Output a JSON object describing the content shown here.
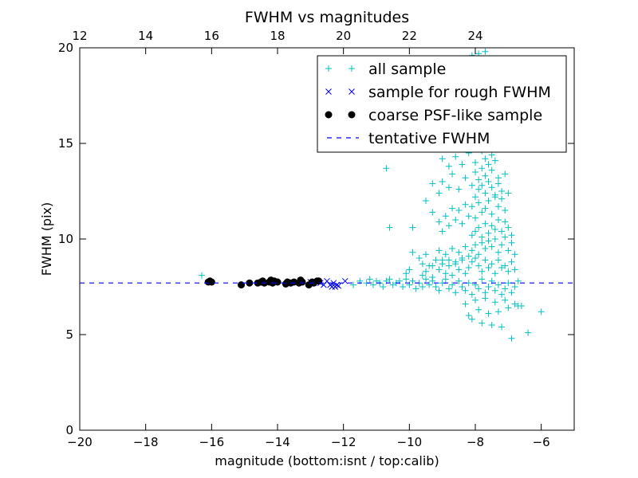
{
  "chart_data": {
    "type": "scatter",
    "title": "FWHM vs magnitudes",
    "xlabel": "magnitude (bottom:isnt / top:calib)",
    "ylabel": "FWHM (pix)",
    "xlim": [
      -20,
      -5
    ],
    "ylim": [
      0,
      20
    ],
    "x_ticks": [
      -20,
      -18,
      -16,
      -14,
      -12,
      -10,
      -8,
      -6
    ],
    "x_tick_labels": [
      "−20",
      "−18",
      "−16",
      "−14",
      "−12",
      "−10",
      "−8",
      "−6"
    ],
    "y_ticks": [
      0,
      5,
      10,
      15,
      20
    ],
    "y_tick_labels": [
      "0",
      "5",
      "10",
      "15",
      "20"
    ],
    "top_axis": {
      "label_values": [
        12,
        14,
        16,
        18,
        20,
        22,
        24
      ],
      "tick_labels": [
        "12",
        "14",
        "16",
        "18",
        "20",
        "22",
        "24"
      ],
      "offset_from_bottom": 32
    },
    "grid": false,
    "legend": {
      "placement": "top-right"
    },
    "hline": {
      "name": "tentative FWHM",
      "y": 7.7,
      "color": "#0000ff",
      "style": "dashed"
    },
    "series": [
      {
        "name": "all sample",
        "marker": "plus",
        "color": "#00bfbf",
        "x": [
          -16.3,
          -11.7,
          -11.5,
          -11.3,
          -11.2,
          -11.1,
          -11.0,
          -10.9,
          -10.8,
          -10.7,
          -10.6,
          -10.5,
          -10.4,
          -10.3,
          -10.2,
          -10.1,
          -10.0,
          -9.9,
          -9.8,
          -9.7,
          -9.6,
          -9.5,
          -9.4,
          -9.3,
          -9.2,
          -9.1,
          -9.0,
          -8.9,
          -8.8,
          -8.7,
          -8.6,
          -8.5,
          -8.4,
          -8.3,
          -8.2,
          -8.1,
          -8.0,
          -7.9,
          -7.8,
          -7.7,
          -7.6,
          -7.5,
          -7.4,
          -7.3,
          -7.2,
          -7.1,
          -7.0,
          -6.9,
          -6.8,
          -6.7,
          -10.6,
          -10.1,
          -10.0,
          -9.9,
          -9.6,
          -9.5,
          -9.4,
          -9.3,
          -9.1,
          -9.0,
          -8.9,
          -8.8,
          -8.7,
          -8.6,
          -8.5,
          -8.4,
          -8.3,
          -8.2,
          -8.1,
          -8.0,
          -7.9,
          -7.8,
          -7.7,
          -7.6,
          -7.5,
          -7.4,
          -7.3,
          -7.2,
          -7.1,
          -7.0,
          -6.9,
          -6.8,
          -6.6,
          -6.4,
          -6.0,
          -8.3,
          -8.2,
          -8.1,
          -8.0,
          -7.9,
          -7.8,
          -7.7,
          -7.6,
          -7.5,
          -7.4,
          -7.3,
          -7.2,
          -7.1,
          -7.0,
          -6.9,
          -6.8,
          -6.7,
          -9.9,
          -9.7,
          -9.6,
          -9.5,
          -9.3,
          -9.2,
          -9.1,
          -9.0,
          -8.9,
          -8.8,
          -8.7,
          -8.6,
          -8.5,
          -8.4,
          -8.3,
          -8.2,
          -8.1,
          -8.0,
          -7.9,
          -7.8,
          -7.7,
          -7.6,
          -7.5,
          -7.4,
          -7.3,
          -7.2,
          -7.1,
          -7.0,
          -6.9,
          -6.8,
          -8.1,
          -8.0,
          -7.9,
          -7.8,
          -7.7,
          -7.6,
          -7.5,
          -7.4,
          -7.3,
          -7.2,
          -7.1,
          -7.0,
          -6.9,
          -9.3,
          -9.1,
          -9.0,
          -8.9,
          -8.8,
          -8.7,
          -8.6,
          -8.5,
          -8.4,
          -8.3,
          -8.2,
          -8.1,
          -8.0,
          -7.9,
          -7.8,
          -7.7,
          -7.6,
          -7.5,
          -7.4,
          -7.3,
          -7.2,
          -7.1,
          -7.0,
          -8.0,
          -7.9,
          -7.8,
          -7.7,
          -7.6,
          -7.5,
          -7.4,
          -7.3,
          -7.2,
          -7.1,
          -9.5,
          -9.3,
          -9.1,
          -9.0,
          -8.8,
          -8.7,
          -8.5,
          -8.3,
          -8.1,
          -8.0,
          -7.9,
          -7.8,
          -7.7,
          -7.6,
          -7.5,
          -7.4,
          -7.3,
          -9.0,
          -8.8,
          -8.6,
          -8.4,
          -8.2,
          -8.0,
          -7.8,
          -7.7,
          -7.6,
          -7.5,
          -7.4,
          -7.3,
          -10.7,
          -9.8,
          -9.4,
          -9.2,
          -8.9,
          -8.6,
          -8.3,
          -8.1,
          -7.9,
          -7.7,
          -7.6,
          -7.4,
          -9.0,
          -8.7,
          -8.5,
          -8.2,
          -8.0,
          -7.8,
          -7.6,
          -8.3,
          -8.1,
          -7.9,
          -7.7,
          -8.1,
          -7.9,
          -7.7
        ],
        "y": [
          8.1,
          7.6,
          7.8,
          7.7,
          7.9,
          7.6,
          7.8,
          7.7,
          7.5,
          7.8,
          7.9,
          7.6,
          7.7,
          7.8,
          7.5,
          7.9,
          7.6,
          7.8,
          7.4,
          7.7,
          7.5,
          7.9,
          7.6,
          7.8,
          7.5,
          7.3,
          7.7,
          7.9,
          7.4,
          7.6,
          7.2,
          7.8,
          7.5,
          7.3,
          7.7,
          7.1,
          7.6,
          7.4,
          7.9,
          7.2,
          7.5,
          7.8,
          7.3,
          7.6,
          7.1,
          7.4,
          7.7,
          7.2,
          7.5,
          7.8,
          10.6,
          8.2,
          8.4,
          10.6,
          8.1,
          8.3,
          8.6,
          8.0,
          8.4,
          8.9,
          8.2,
          8.6,
          8.1,
          8.7,
          8.4,
          8.9,
          8.2,
          8.5,
          8.8,
          9.0,
          8.6,
          8.3,
          8.9,
          8.5,
          8.7,
          8.2,
          8.9,
          8.5,
          8.6,
          8.3,
          8.8,
          8.4,
          6.5,
          5.1,
          6.2,
          6.6,
          6.0,
          5.8,
          6.8,
          6.3,
          5.6,
          6.9,
          6.1,
          5.5,
          6.7,
          6.2,
          5.4,
          6.8,
          6.4,
          4.8,
          6.6,
          6.5,
          9.3,
          9.0,
          8.7,
          9.2,
          8.6,
          8.9,
          9.4,
          8.7,
          9.2,
          8.9,
          9.5,
          8.8,
          9.3,
          9.0,
          9.6,
          9.1,
          9.4,
          9.7,
          9.2,
          9.8,
          9.5,
          9.9,
          9.6,
          10.0,
          9.3,
          9.7,
          10.1,
          9.4,
          9.8,
          9.2,
          10.2,
          10.4,
          10.6,
          10.1,
          10.8,
          10.3,
          10.7,
          10.5,
          11.0,
          10.4,
          10.9,
          10.6,
          10.2,
          11.4,
          10.9,
          10.4,
          11.2,
          10.7,
          11.6,
          11.0,
          11.5,
          10.8,
          11.8,
          11.2,
          11.7,
          11.1,
          11.9,
          11.4,
          11.6,
          12.0,
          11.3,
          12.2,
          11.7,
          12.1,
          11.5,
          12.4,
          12.2,
          12.6,
          12.8,
          12.4,
          13.0,
          12.7,
          12.3,
          12.9,
          12.5,
          13.4,
          12.0,
          12.9,
          12.4,
          13.0,
          12.7,
          13.4,
          12.6,
          13.2,
          12.8,
          13.5,
          13.1,
          13.7,
          13.3,
          13.9,
          13.6,
          14.1,
          13.2,
          14.2,
          13.8,
          14.3,
          13.9,
          14.5,
          14.0,
          14.6,
          14.2,
          14.8,
          14.4,
          15.0,
          14.7,
          13.7,
          15.0,
          15.2,
          15.3,
          15.4,
          15.5,
          15.6,
          15.8,
          16.0,
          16.2,
          15.7,
          16.1,
          16.6,
          17.0,
          17.4,
          17.8,
          18.2,
          18.6,
          19.0,
          18.4,
          19.6,
          19.2,
          19.8,
          19.5,
          19.7,
          19.3
        ]
      },
      {
        "name": "sample for rough FWHM",
        "marker": "x",
        "color": "#0000ff",
        "x": [
          -12.7,
          -12.6,
          -12.5,
          -12.4,
          -12.35,
          -12.3,
          -12.25,
          -12.2,
          -12.15,
          -11.95,
          -12.9,
          -13.0
        ],
        "y": [
          7.7,
          7.6,
          7.8,
          7.6,
          7.5,
          7.7,
          7.5,
          7.6,
          7.55,
          7.8,
          7.7,
          7.75
        ]
      },
      {
        "name": "coarse PSF-like sample",
        "marker": "circle",
        "color": "#000000",
        "x": [
          -16.1,
          -16.05,
          -16.0,
          -15.1,
          -14.85,
          -14.6,
          -14.5,
          -14.45,
          -14.4,
          -14.25,
          -14.2,
          -14.15,
          -14.1,
          -14.0,
          -13.75,
          -13.7,
          -13.6,
          -13.5,
          -13.35,
          -13.3,
          -13.25,
          -13.05,
          -12.95,
          -12.9,
          -12.8,
          -12.75
        ],
        "y": [
          7.75,
          7.8,
          7.75,
          7.6,
          7.7,
          7.7,
          7.75,
          7.8,
          7.7,
          7.75,
          7.85,
          7.7,
          7.8,
          7.75,
          7.65,
          7.75,
          7.7,
          7.75,
          7.7,
          7.85,
          7.75,
          7.6,
          7.75,
          7.7,
          7.8,
          7.8
        ]
      }
    ]
  }
}
